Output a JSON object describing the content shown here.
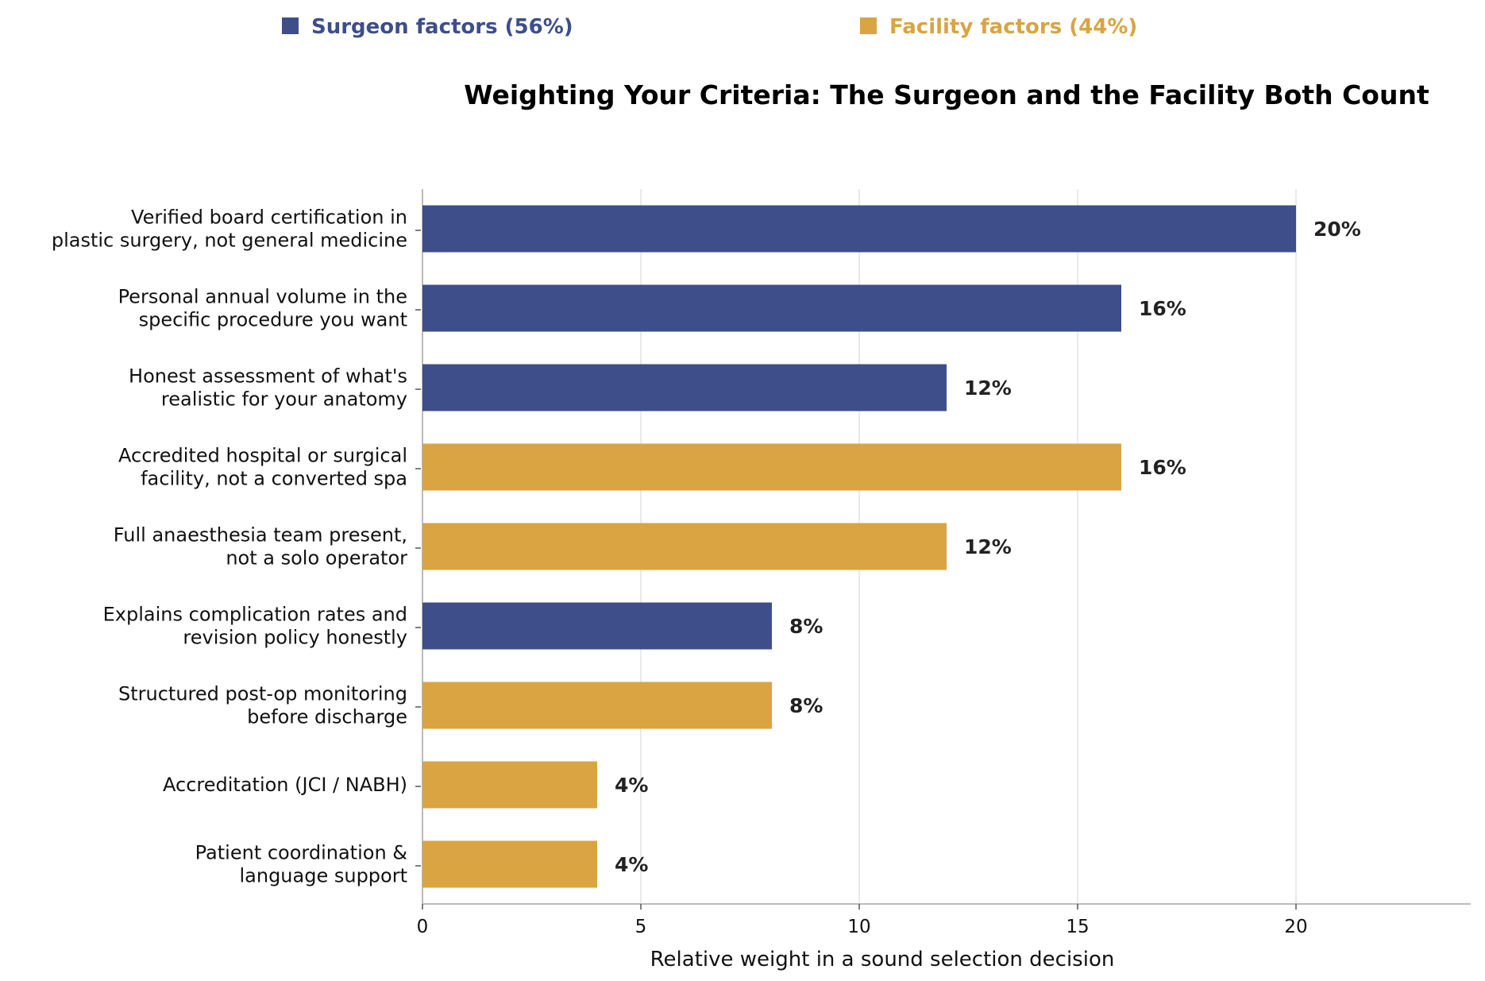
{
  "chart_data": {
    "type": "bar",
    "orientation": "horizontal",
    "title": "Weighting Your Criteria: The Surgeon and the Facility Both Count",
    "xlabel": "Relative weight in a sound selection decision",
    "ylabel": "",
    "xlim": [
      0,
      24
    ],
    "xticks": [
      0,
      5,
      10,
      15,
      20
    ],
    "grid": "vertical",
    "legend_position": "top",
    "legend": [
      {
        "label": "Surgeon factors (56%)",
        "color": "#3d4e8a",
        "group": "surgeon"
      },
      {
        "label": "Facility factors (44%)",
        "color": "#d9a441",
        "group": "facility"
      }
    ],
    "bars": [
      {
        "lines": [
          "Verified board certification in",
          "plastic surgery, not general medicine"
        ],
        "value": 20,
        "value_label": "20%",
        "group": "surgeon"
      },
      {
        "lines": [
          "Personal annual volume in the",
          "specific procedure you want"
        ],
        "value": 16,
        "value_label": "16%",
        "group": "surgeon"
      },
      {
        "lines": [
          "Honest assessment of what's",
          "realistic for your anatomy"
        ],
        "value": 12,
        "value_label": "12%",
        "group": "surgeon"
      },
      {
        "lines": [
          "Accredited hospital or surgical",
          "facility, not a converted spa"
        ],
        "value": 16,
        "value_label": "16%",
        "group": "facility"
      },
      {
        "lines": [
          "Full anaesthesia team present,",
          "not a solo operator"
        ],
        "value": 12,
        "value_label": "12%",
        "group": "facility"
      },
      {
        "lines": [
          "Explains complication rates and",
          "revision policy honestly"
        ],
        "value": 8,
        "value_label": "8%",
        "group": "surgeon"
      },
      {
        "lines": [
          "Structured post-op monitoring",
          "before discharge"
        ],
        "value": 8,
        "value_label": "8%",
        "group": "facility"
      },
      {
        "lines": [
          "Accreditation (JCI / NABH)"
        ],
        "value": 4,
        "value_label": "4%",
        "group": "facility"
      },
      {
        "lines": [
          "Patient coordination &",
          "language support"
        ],
        "value": 4,
        "value_label": "4%",
        "group": "facility"
      }
    ]
  }
}
